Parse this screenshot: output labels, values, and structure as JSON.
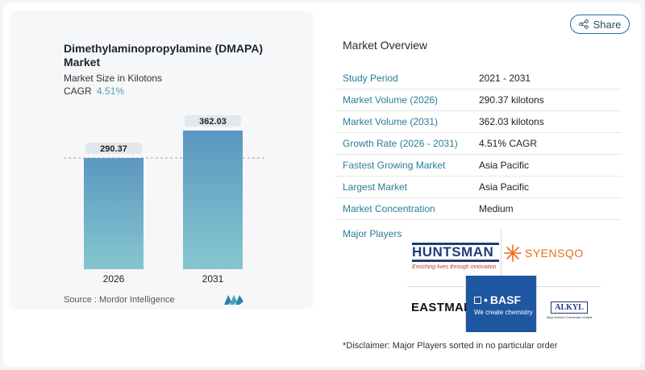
{
  "chart": {
    "title": "Dimethylaminopropylamine (DMAPA) Market",
    "subtitle": "Market Size in Kilotons",
    "cagr_label": "CAGR",
    "cagr_value": "4.51%",
    "source": "Source :  Mordor Intelligence"
  },
  "chart_data": {
    "type": "bar",
    "categories": [
      "2026",
      "2031"
    ],
    "values": [
      290.37,
      362.03
    ],
    "value_labels": [
      "290.37",
      "362.03"
    ],
    "title": "Dimethylaminopropylamine (DMAPA) Market",
    "subtitle": "Market Size in Kilotons",
    "ylim": [
      0,
      362.03
    ],
    "reference_line_value": 290.37,
    "reference_line_style": "dashed",
    "colors": {
      "bar_top": "#5b97c0",
      "bar_bottom": "#86c6cf"
    }
  },
  "share_label": "Share",
  "overview": {
    "title": "Market Overview",
    "rows": [
      {
        "label": "Study Period",
        "value": "2021 - 2031"
      },
      {
        "label": "Market Volume (2026)",
        "value": "290.37 kilotons"
      },
      {
        "label": "Market Volume (2031)",
        "value": "362.03 kilotons"
      },
      {
        "label": "Growth Rate (2026 - 2031)",
        "value": "4.51% CAGR"
      },
      {
        "label": "Fastest Growing Market",
        "value": "Asia Pacific"
      },
      {
        "label": "Largest Market",
        "value": "Asia Pacific"
      },
      {
        "label": "Market Concentration",
        "value": "Medium"
      }
    ]
  },
  "players": {
    "label": "Major Players",
    "logos": {
      "huntsman": {
        "name": "HUNTSMAN",
        "tagline": "Enriching lives through innovation"
      },
      "syensqo": {
        "name": "SYENSQO"
      },
      "eastman": {
        "name": "EASTMAN"
      },
      "basf": {
        "name": "BASF",
        "tagline": "We create chemistry"
      },
      "alkyl": {
        "name": "ALKYL",
        "tagline": "Alkyl Amines Chemicals Limited"
      }
    }
  },
  "disclaimer": "*Disclaimer: Major Players sorted in no particular order",
  "colors": {
    "accent": "#2a7d98",
    "cagr": "#4aa3b4",
    "basf_blue": "#1e56a0",
    "huntsman_blue": "#1f3c7a",
    "syensqo_orange": "#f26a21"
  }
}
